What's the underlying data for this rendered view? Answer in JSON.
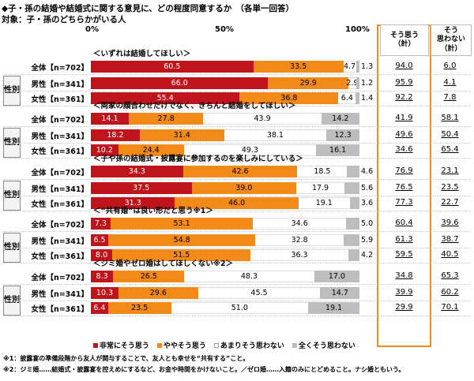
{
  "title_line1": "◆子・孫の結婚や結婚式に関する意見に、どの程度同意するか　（各単一回答）",
  "title_line2": "対象：子・孫のどちらかがいる人",
  "axis_ticks": [
    "0%",
    "50%",
    "100%"
  ],
  "header_yes": [
    "そう思う",
    "（計）"
  ],
  "header_no": [
    "そう",
    "思わない",
    "（計）"
  ],
  "group_label": "性別",
  "colors": {
    "strongly_agree": "#c0141c",
    "somewhat_agree": "#f28a1a",
    "somewhat_disagree": "#ffffff",
    "strongly_disagree": "#bdbdbd",
    "yes_col_border": "#f08a18"
  },
  "chart_data": {
    "type": "bar",
    "stacked": true,
    "orientation": "horizontal",
    "xlim": [
      0,
      100
    ],
    "series_names": [
      "非常にそう思う",
      "ややそう思う",
      "あまりそう思わない",
      "全くそう思わない"
    ],
    "questions": [
      {
        "label": "＜いずれは結婚してほしい＞",
        "rows": [
          {
            "label": "全体【n=702】",
            "values": [
              60.5,
              33.5,
              4.7,
              1.3
            ],
            "yes_total": "94.0",
            "no_total": "6.0"
          },
          {
            "label": "男性【n=341】",
            "values": [
              66.0,
              29.9,
              2.9,
              1.2
            ],
            "yes_total": "95.9",
            "no_total": "4.1"
          },
          {
            "label": "女性【n=361】",
            "values": [
              55.4,
              36.8,
              6.4,
              1.4
            ],
            "yes_total": "92.2",
            "no_total": "7.8"
          }
        ]
      },
      {
        "label": "＜両家の顔合わせだけでなく、きちんと結婚をしてほしい＞",
        "rows": [
          {
            "label": "全体【n=702】",
            "values": [
              14.1,
              27.8,
              43.9,
              14.2
            ],
            "yes_total": "41.9",
            "no_total": "58.1"
          },
          {
            "label": "男性【n=341】",
            "values": [
              18.2,
              31.4,
              38.1,
              12.3
            ],
            "yes_total": "49.6",
            "no_total": "50.4"
          },
          {
            "label": "女性【n=361】",
            "values": [
              10.2,
              24.4,
              49.3,
              16.1
            ],
            "yes_total": "34.6",
            "no_total": "65.4"
          }
        ]
      },
      {
        "label": "＜子や孫の結婚式・披露宴に参加するのを楽しみにしている＞",
        "rows": [
          {
            "label": "全体【n=702】",
            "values": [
              34.3,
              42.6,
              18.5,
              4.6
            ],
            "yes_total": "76.9",
            "no_total": "23.1"
          },
          {
            "label": "男性【n=341】",
            "values": [
              37.5,
              39.0,
              17.9,
              5.6
            ],
            "yes_total": "76.5",
            "no_total": "23.5"
          },
          {
            "label": "女性【n=361】",
            "values": [
              31.3,
              46.0,
              19.1,
              3.6
            ],
            "yes_total": "77.3",
            "no_total": "22.7"
          }
        ]
      },
      {
        "label": "＜“共有婚”は良い形だと思う※1＞",
        "rows": [
          {
            "label": "全体【n=702】",
            "values": [
              7.3,
              53.1,
              34.6,
              5.0
            ],
            "yes_total": "60.4",
            "no_total": "39.6"
          },
          {
            "label": "男性【n=341】",
            "values": [
              6.5,
              54.8,
              32.8,
              5.9
            ],
            "yes_total": "61.3",
            "no_total": "38.7"
          },
          {
            "label": "女性【n=361】",
            "values": [
              8.0,
              51.5,
              36.3,
              4.2
            ],
            "yes_total": "59.5",
            "no_total": "40.5"
          }
        ]
      },
      {
        "label": "＜ジミ婚やゼロ婚はしてほしくない※2＞",
        "rows": [
          {
            "label": "全体【n=702】",
            "values": [
              8.3,
              26.5,
              48.3,
              17.0
            ],
            "yes_total": "34.8",
            "no_total": "65.3"
          },
          {
            "label": "男性【n=341】",
            "values": [
              10.3,
              29.6,
              45.5,
              14.7
            ],
            "yes_total": "39.9",
            "no_total": "60.2"
          },
          {
            "label": "女性【n=361】",
            "values": [
              6.4,
              23.5,
              51.0,
              19.1
            ],
            "yes_total": "29.9",
            "no_total": "70.1"
          }
        ]
      }
    ]
  },
  "legend": [
    "非常にそう思う",
    "ややそう思う",
    "あまりそう思わない",
    "全くそう思わない"
  ],
  "notes": [
    "※1：披露宴の準備段階から友人が関与することで、友人とも幸せを“共有する”こと。",
    "※2：ジミ婚……結婚式・披露宴を控えめにするなど、お金や時間をかけないこと。／ゼロ婚……入籍のみにとどめること。ナシ婚ともいう。"
  ]
}
